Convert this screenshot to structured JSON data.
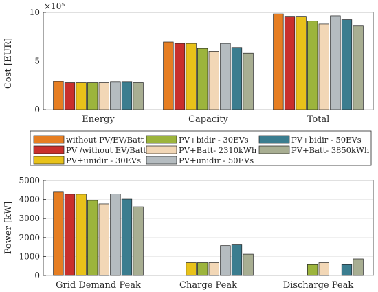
{
  "chart_data": [
    {
      "type": "bar",
      "exponent_label": "×10⁵",
      "ylabel": "Cost [EUR]",
      "ylim": [
        0,
        1000000
      ],
      "yticks": [
        0,
        500000,
        1000000
      ],
      "ytick_labels": [
        "0",
        "5",
        "10"
      ],
      "categories": [
        "Energy",
        "Capacity",
        "Total"
      ],
      "series": [
        {
          "name": "without PV/EV/Batt",
          "values": [
            290000,
            695000,
            985000
          ]
        },
        {
          "name": "PV /without EV/Batt",
          "values": [
            280000,
            680000,
            960000
          ]
        },
        {
          "name": "PV+unidir - 30EVs",
          "values": [
            280000,
            680000,
            960000
          ]
        },
        {
          "name": "PV+bidir - 30EVs",
          "values": [
            280000,
            630000,
            910000
          ]
        },
        {
          "name": "PV+Batt- 2310kWh",
          "values": [
            280000,
            600000,
            880000
          ]
        },
        {
          "name": "PV+unidir - 50EVs",
          "values": [
            285000,
            680000,
            965000
          ]
        },
        {
          "name": "PV+bidir - 50EVs",
          "values": [
            285000,
            640000,
            925000
          ]
        },
        {
          "name": "PV+Batt- 3850kWh",
          "values": [
            280000,
            580000,
            860000
          ]
        }
      ]
    },
    {
      "type": "bar",
      "ylabel": "Power [kW]",
      "ylim": [
        0,
        5000
      ],
      "yticks": [
        0,
        1000,
        2000,
        3000,
        4000,
        5000
      ],
      "ytick_labels": [
        "0",
        "1000",
        "2000",
        "3000",
        "4000",
        "5000"
      ],
      "categories": [
        "Grid Demand Peak",
        "Charge Peak",
        "Discharge Peak"
      ],
      "series": [
        {
          "name": "without PV/EV/Batt",
          "values": [
            4390,
            0,
            0
          ]
        },
        {
          "name": "PV /without EV/Batt",
          "values": [
            4280,
            0,
            0
          ]
        },
        {
          "name": "PV+unidir - 30EVs",
          "values": [
            4280,
            670,
            0
          ]
        },
        {
          "name": "PV+bidir - 30EVs",
          "values": [
            3950,
            670,
            570
          ]
        },
        {
          "name": "PV+Batt- 2310kWh",
          "values": [
            3770,
            670,
            670
          ]
        },
        {
          "name": "PV+unidir - 50EVs",
          "values": [
            4290,
            1570,
            0
          ]
        },
        {
          "name": "PV+bidir - 50EVs",
          "values": [
            4020,
            1610,
            570
          ]
        },
        {
          "name": "PV+Batt- 3850kWh",
          "values": [
            3620,
            1120,
            870
          ]
        }
      ]
    }
  ],
  "legend": {
    "entries": [
      "without PV/EV/Batt",
      "PV /without EV/Batt",
      "PV+unidir - 30EVs",
      "PV+bidir - 30EVs",
      "PV+Batt- 2310kWh",
      "PV+unidir - 50EVs",
      "PV+bidir - 50EVs",
      "PV+Batt- 3850kWh"
    ]
  },
  "colors": {
    "series": [
      "#e67e22",
      "#c9302c",
      "#e8c21a",
      "#9cb43c",
      "#f2d7b6",
      "#b5bcc0",
      "#3b7d8f",
      "#a8ae92"
    ],
    "grid": "#e6e6e6",
    "axis": "#262626"
  }
}
